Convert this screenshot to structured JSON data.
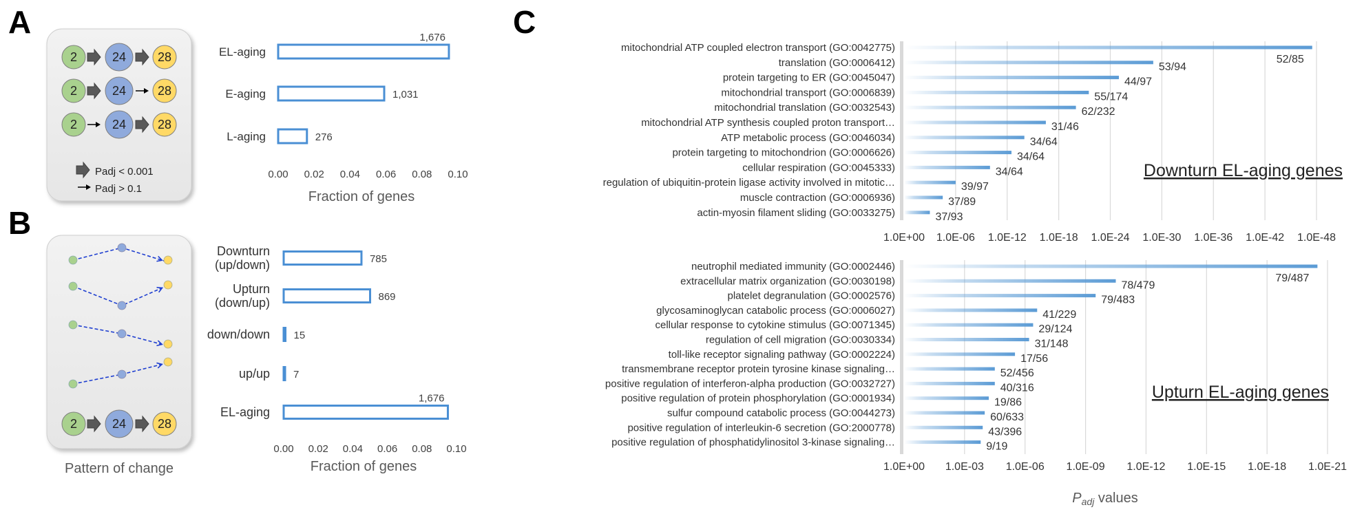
{
  "panels": {
    "A": {
      "label": "A",
      "flow_rows": [
        {
          "from": "2",
          "mid": "24",
          "to": "28",
          "arrow1": "thick",
          "arrow2": "thick"
        },
        {
          "from": "2",
          "mid": "24",
          "to": "28",
          "arrow1": "thick",
          "arrow2": "thin"
        },
        {
          "from": "2",
          "mid": "24",
          "to": "28",
          "arrow1": "thin",
          "arrow2": "thick"
        }
      ],
      "legend_thick": "Padj < 0.001",
      "legend_thin": "Padj > 0.1",
      "xlabel": "Fraction of genes",
      "xticks": [
        "0.00",
        "0.02",
        "0.04",
        "0.06",
        "0.08",
        "0.10"
      ]
    },
    "B": {
      "label": "B",
      "pattern_caption": "Pattern of change",
      "flow_row": {
        "from": "2",
        "mid": "24",
        "to": "28"
      },
      "xlabel": "Fraction of genes",
      "xticks": [
        "0.00",
        "0.02",
        "0.04",
        "0.06",
        "0.08",
        "0.10"
      ]
    },
    "C": {
      "label": "C",
      "xlabel_main": "P",
      "xlabel_sub": "adj",
      "xlabel_rest": " values",
      "top_heading": "Downturn EL-aging genes",
      "bottom_heading": "Upturn EL-aging genes",
      "top_xticks": [
        "1.0E+00",
        "1.0E-06",
        "1.0E-12",
        "1.0E-18",
        "1.0E-24",
        "1.0E-30",
        "1.0E-36",
        "1.0E-42",
        "1.0E-48"
      ],
      "bottom_xticks": [
        "1.0E+00",
        "1.0E-03",
        "1.0E-06",
        "1.0E-09",
        "1.0E-12",
        "1.0E-15",
        "1.0E-18",
        "1.0E-21"
      ]
    }
  },
  "colors": {
    "bar_outline": "#4a8fd4",
    "circle_green": "#a9d18e",
    "circle_blue": "#8faadc",
    "circle_yellow": "#ffd966",
    "go_bar": "#5b9bd5",
    "dash_blue": "#1f3fd0"
  },
  "chart_data": [
    {
      "type": "bar",
      "orientation": "horizontal",
      "panel": "A",
      "categories": [
        "EL-aging",
        "E-aging",
        "L-aging"
      ],
      "values": [
        0.095,
        0.059,
        0.016
      ],
      "labels": [
        "1,676",
        "1,031",
        "276"
      ],
      "xlabel": "Fraction of genes",
      "xlim": [
        0,
        0.1
      ]
    },
    {
      "type": "bar",
      "orientation": "horizontal",
      "panel": "B",
      "categories": [
        "Downturn\n(up/down)",
        "Upturn\n(down/up)",
        "down/down",
        "up/up",
        "EL-aging"
      ],
      "category_lines": [
        [
          "Downturn",
          "(up/down)"
        ],
        [
          "Upturn",
          "(down/up)"
        ],
        [
          "down/down"
        ],
        [
          "up/up"
        ],
        [
          "EL-aging"
        ]
      ],
      "values": [
        0.045,
        0.05,
        0.001,
        0.0004,
        0.095
      ],
      "labels": [
        "785",
        "869",
        "15",
        "7",
        "1,676"
      ],
      "xlabel": "Fraction of genes",
      "xlim": [
        0,
        0.1
      ]
    },
    {
      "type": "bar",
      "orientation": "horizontal",
      "panel": "C-top",
      "title": "Downturn EL-aging genes",
      "categories": [
        "mitochondrial ATP coupled electron transport (GO:0042775)",
        "translation (GO:0006412)",
        "protein targeting to ER (GO:0045047)",
        "mitochondrial transport (GO:0006839)",
        "mitochondrial translation (GO:0032543)",
        "mitochondrial ATP synthesis coupled proton transport…",
        "ATP metabolic process (GO:0046034)",
        "protein targeting to mitochondrion (GO:0006626)",
        "cellular respiration (GO:0045333)",
        "regulation of ubiquitin-protein ligase activity involved in mitotic…",
        "muscle contraction (GO:0006936)",
        "actin-myosin filament sliding (GO:0033275)"
      ],
      "neg_log10_padj": [
        47.5,
        29,
        25,
        21.5,
        20,
        16.5,
        14,
        12.5,
        10,
        6,
        4.5,
        3
      ],
      "labels": [
        "52/85",
        "53/94",
        "44/97",
        "55/174",
        "62/232",
        "31/46",
        "34/64",
        "34/64",
        "34/64",
        "39/97",
        "37/89",
        "37/93"
      ],
      "xlabel": "Padj values",
      "x_scale": "log (reversed, exponent)",
      "xlim_exponent": [
        0,
        -48
      ]
    },
    {
      "type": "bar",
      "orientation": "horizontal",
      "panel": "C-bottom",
      "title": "Upturn EL-aging genes",
      "categories": [
        "neutrophil mediated immunity (GO:0002446)",
        "extracellular matrix organization (GO:0030198)",
        "platelet degranulation (GO:0002576)",
        "glycosaminoglycan catabolic process (GO:0006027)",
        "cellular response to cytokine stimulus (GO:0071345)",
        "regulation of cell migration (GO:0030334)",
        "toll-like receptor signaling pathway (GO:0002224)",
        "transmembrane receptor protein tyrosine kinase signaling…",
        "positive regulation of interferon-alpha production (GO:0032727)",
        "positive regulation of protein phosphorylation (GO:0001934)",
        "sulfur compound catabolic process (GO:0044273)",
        "positive regulation of interleukin-6 secretion (GO:2000778)",
        "positive regulation of phosphatidylinositol 3-kinase signaling…"
      ],
      "neg_log10_padj": [
        20.5,
        10.5,
        9.5,
        6.6,
        6.4,
        6.2,
        5.5,
        4.5,
        4.5,
        4.2,
        4.0,
        3.9,
        3.8
      ],
      "labels": [
        "79/487",
        "78/479",
        "79/483",
        "41/229",
        "29/124",
        "31/148",
        "17/56",
        "52/456",
        "40/316",
        "19/86",
        "60/633",
        "43/396",
        "9/19"
      ],
      "xlabel": "Padj values",
      "x_scale": "log (reversed, exponent)",
      "xlim_exponent": [
        0,
        -21
      ]
    }
  ]
}
